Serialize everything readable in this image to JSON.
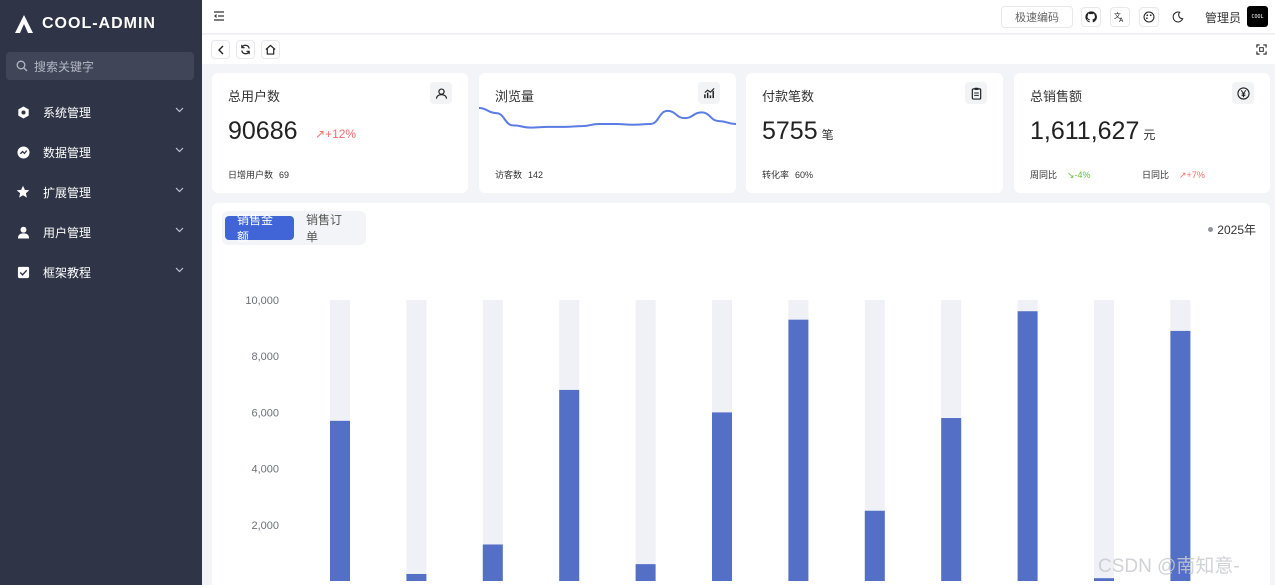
{
  "app": {
    "name": "COOL-ADMIN"
  },
  "sidebar": {
    "search_placeholder": "搜索关键字",
    "items": [
      {
        "label": "系统管理",
        "icon": "settings-icon"
      },
      {
        "label": "数据管理",
        "icon": "data-icon"
      },
      {
        "label": "扩展管理",
        "icon": "star-icon"
      },
      {
        "label": "用户管理",
        "icon": "user-icon"
      },
      {
        "label": "框架教程",
        "icon": "checklist-icon"
      }
    ]
  },
  "topbar": {
    "code_button": "极速编码",
    "admin_name": "管理员",
    "avatar_text": "COOL"
  },
  "cards": [
    {
      "title": "总用户数",
      "value": "90686",
      "trend": "↗+12%",
      "foot_label": "日增用户数",
      "foot_value": "69"
    },
    {
      "title": "浏览量",
      "foot_label": "访客数",
      "foot_value": "142"
    },
    {
      "title": "付款笔数",
      "value": "5755",
      "unit": "笔",
      "foot_label": "转化率",
      "foot_value": "60%"
    },
    {
      "title": "总销售额",
      "value": "1,611,627",
      "unit": "元",
      "week_label": "周同比",
      "week_value": "↘-4%",
      "day_label": "日同比",
      "day_value": "↗+7%"
    }
  ],
  "chart_panel": {
    "tabs": [
      "销售金额",
      "销售订单"
    ],
    "active_tab": 0,
    "year": "2025年"
  },
  "watermark": "CSDN @南知意-",
  "colors": {
    "accent": "#4165d7",
    "bar": "#5470c6",
    "bar_bg": "#f0f1f7",
    "sidebar": "#2f3447",
    "line": "#5b7be5"
  },
  "chart_data": {
    "type": "bar",
    "title": "",
    "xlabel": "",
    "ylabel": "",
    "ylim": [
      0,
      10000
    ],
    "yticks": [
      "10,000",
      "8,000",
      "6,000",
      "4,000",
      "2,000"
    ],
    "background_max": 10000,
    "values": [
      5700,
      250,
      1300,
      6800,
      600,
      6000,
      9300,
      2500,
      5800,
      9600,
      100,
      8900
    ]
  },
  "sparkline": {
    "values": [
      62,
      55,
      38,
      35,
      36,
      36,
      37,
      40,
      40,
      39,
      40,
      58,
      48,
      56,
      44,
      40
    ]
  }
}
